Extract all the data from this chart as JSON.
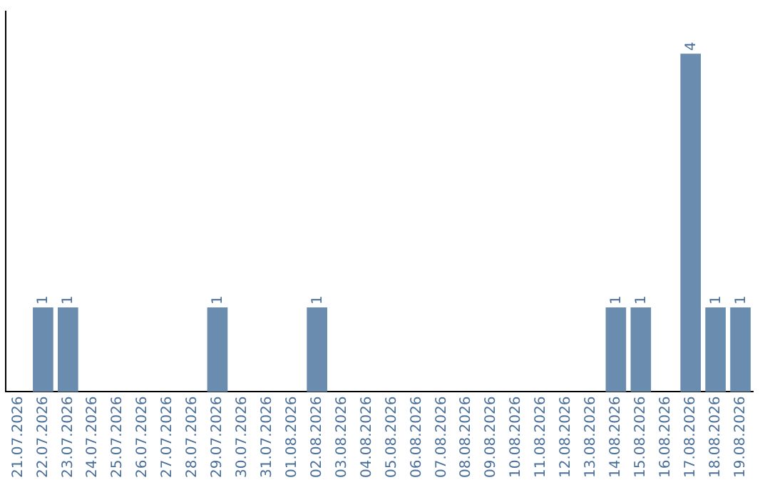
{
  "chart_data": {
    "type": "bar",
    "categories": [
      "21.07.2026",
      "22.07.2026",
      "23.07.2026",
      "24.07.2026",
      "25.07.2026",
      "26.07.2026",
      "27.07.2026",
      "28.07.2026",
      "29.07.2026",
      "30.07.2026",
      "31.07.2026",
      "01.08.2026",
      "02.08.2026",
      "03.08.2026",
      "04.08.2026",
      "05.08.2026",
      "06.08.2026",
      "07.08.2026",
      "08.08.2026",
      "09.08.2026",
      "10.08.2026",
      "11.08.2026",
      "12.08.2026",
      "13.08.2026",
      "14.08.2026",
      "15.08.2026",
      "16.08.2026",
      "17.08.2026",
      "18.08.2026",
      "19.08.2026"
    ],
    "values": [
      0,
      1,
      1,
      0,
      0,
      0,
      0,
      0,
      1,
      0,
      0,
      0,
      1,
      0,
      0,
      0,
      0,
      0,
      0,
      0,
      0,
      0,
      0,
      0,
      1,
      1,
      0,
      4,
      1,
      1
    ],
    "value_labels": [
      null,
      "1",
      "1",
      null,
      null,
      null,
      null,
      null,
      "1",
      null,
      null,
      null,
      "1",
      null,
      null,
      null,
      null,
      null,
      null,
      null,
      null,
      null,
      null,
      null,
      "1",
      "1",
      null,
      "4",
      "1",
      "1"
    ],
    "color": "#6a8caf",
    "tick_labels": "x",
    "grid": false,
    "legend": false
  }
}
